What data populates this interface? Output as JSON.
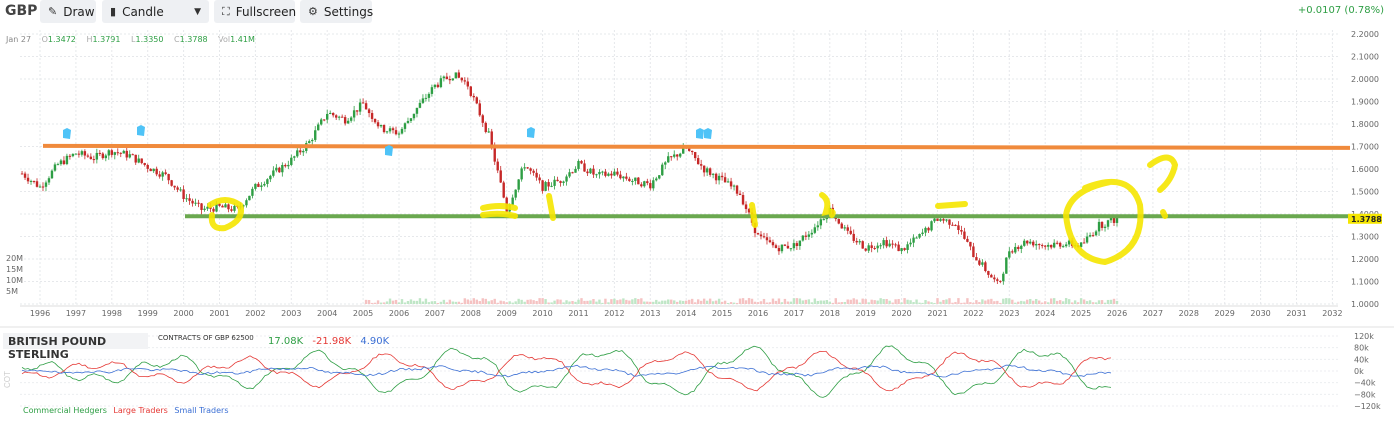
{
  "toolbar": {
    "symbol": "GBP",
    "draw_label": "Draw",
    "chart_type_label": "Candle",
    "fullscreen_label": "Fullscreen",
    "settings_label": "Settings",
    "change": "+0.0107 (0.78%)"
  },
  "ohlc": {
    "date": "Jan 27",
    "open_key": "O",
    "open": "1.3472",
    "high_key": "H",
    "high": "1.3791",
    "low_key": "L",
    "low": "1.3350",
    "close_key": "C",
    "close": "1.3788",
    "vol_key": "Vol",
    "vol": "1.41M"
  },
  "price_axis": {
    "labels": [
      "2.2000",
      "2.1000",
      "2.0000",
      "1.9000",
      "1.8000",
      "1.7000",
      "1.6000",
      "1.5000",
      "1.4000",
      "1.3000",
      "1.2000",
      "1.1000",
      "1.0000"
    ],
    "values": [
      2.2,
      2.1,
      2.0,
      1.9,
      1.8,
      1.7,
      1.6,
      1.5,
      1.4,
      1.3,
      1.2,
      1.1,
      1.0
    ],
    "current_label": "1.3788",
    "current_value": 1.3788
  },
  "volume_axis": {
    "labels": [
      "20M",
      "15M",
      "10M",
      "5M"
    ]
  },
  "time_axis": {
    "years": [
      "1996",
      "1997",
      "1998",
      "1999",
      "2000",
      "2001",
      "2002",
      "2003",
      "2004",
      "2005",
      "2006",
      "2007",
      "2008",
      "2009",
      "2010",
      "2011",
      "2012",
      "2013",
      "2014",
      "2015",
      "2016",
      "2017",
      "2018",
      "2019",
      "2020",
      "2021",
      "2022",
      "2023",
      "2024",
      "2025",
      "2026",
      "2027",
      "2028",
      "2029",
      "2030",
      "2031",
      "2032"
    ]
  },
  "lines": {
    "resistance": 1.703,
    "support": 1.39,
    "resistance_color": "#f08a3c",
    "support_color": "#6aa84f"
  },
  "colors": {
    "up": "#2e9e44",
    "down": "#c62828",
    "commercial": "#2e9e44",
    "large": "#e53935",
    "small": "#3b6fd4",
    "highlight": "#f5e600",
    "marker": "#4fc3f7"
  },
  "chart_data": {
    "type": "line",
    "title": "",
    "xlabel": "",
    "ylabel": "",
    "ylim": [
      1.0,
      2.2
    ],
    "x": [
      1995.5,
      1996,
      1996.5,
      1997,
      1997.5,
      1998,
      1998.5,
      1999,
      1999.5,
      2000,
      2000.5,
      2001,
      2001.5,
      2002,
      2002.5,
      2003,
      2003.5,
      2004,
      2004.5,
      2005,
      2005.5,
      2006,
      2006.5,
      2007,
      2007.5,
      2007.9,
      2008.5,
      2009,
      2009.5,
      2010,
      2010.5,
      2011,
      2011.5,
      2012,
      2012.5,
      2013,
      2013.5,
      2014,
      2014.5,
      2015,
      2015.5,
      2016,
      2016.5,
      2017,
      2017.5,
      2018,
      2018.5,
      2019,
      2019.5,
      2020,
      2020.5,
      2021,
      2021.5,
      2022,
      2022.7,
      2023,
      2023.5,
      2024,
      2024.5,
      2025,
      2025.5,
      2026
    ],
    "series": [
      {
        "values": [
          1.58,
          1.52,
          1.62,
          1.67,
          1.65,
          1.68,
          1.66,
          1.61,
          1.57,
          1.48,
          1.42,
          1.43,
          1.42,
          1.52,
          1.58,
          1.64,
          1.72,
          1.85,
          1.82,
          1.89,
          1.78,
          1.76,
          1.87,
          1.97,
          2.02,
          1.98,
          1.75,
          1.42,
          1.62,
          1.52,
          1.55,
          1.62,
          1.57,
          1.58,
          1.55,
          1.53,
          1.64,
          1.69,
          1.6,
          1.55,
          1.49,
          1.3,
          1.25,
          1.26,
          1.33,
          1.42,
          1.31,
          1.25,
          1.28,
          1.24,
          1.3,
          1.38,
          1.36,
          1.22,
          1.08,
          1.24,
          1.28,
          1.26,
          1.27,
          1.26,
          1.35,
          1.3788
        ]
      }
    ],
    "cot": {
      "title": "BRITISH POUND STERLING",
      "subtitle": "CONTRACTS OF GBP 62500",
      "side_label": "COT",
      "values": [
        "17.08K",
        "-21.98K",
        "4.90K"
      ],
      "axis_labels": [
        "120k",
        "80k",
        "40k",
        "0k",
        "−40k",
        "−80k",
        "−120k"
      ],
      "axis_values": [
        120,
        80,
        40,
        0,
        -40,
        -80,
        -120
      ],
      "legend": [
        "Commercial Hedgers",
        "Large Traders",
        "Small Traders"
      ]
    }
  }
}
